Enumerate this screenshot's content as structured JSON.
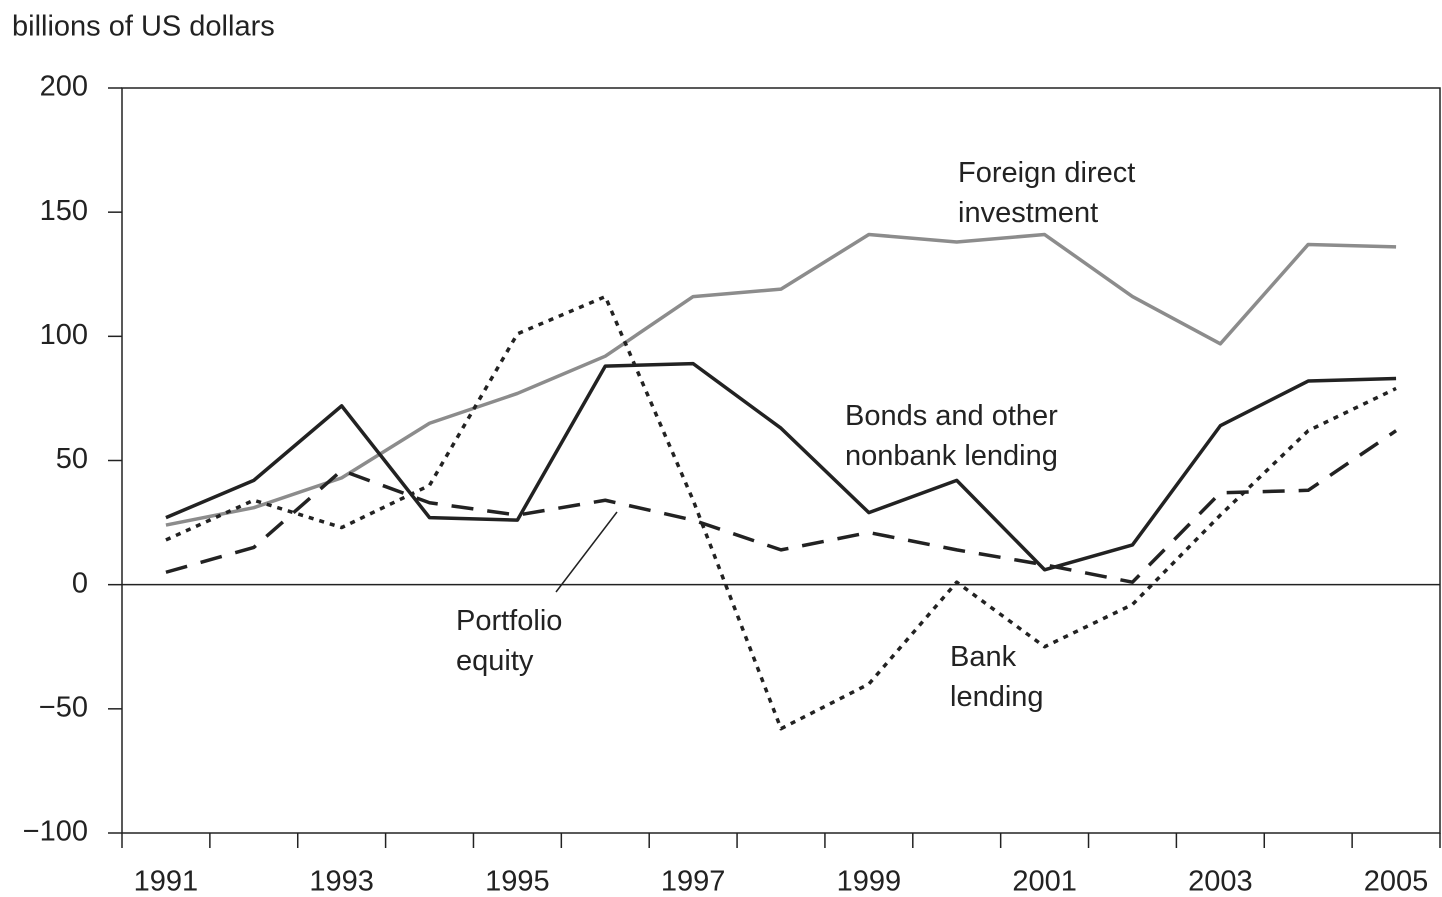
{
  "chart_data": {
    "type": "line",
    "y_label": "billions of US dollars",
    "categories": [
      "1991",
      null,
      "1993",
      null,
      "1995",
      null,
      "1997",
      null,
      "1999",
      null,
      "2001",
      null,
      "2003",
      null,
      "2005"
    ],
    "ylim": [
      -100,
      200
    ],
    "yticks": [
      -100,
      -50,
      0,
      50,
      100,
      150,
      200
    ],
    "yticklabels": [
      "−100",
      "−50",
      "0",
      "50",
      "100",
      "150",
      "200"
    ],
    "series": [
      {
        "name": "Foreign direct investment",
        "color": "#8c8c8c",
        "dash": "solid",
        "values": [
          24,
          31,
          43,
          65,
          77,
          92,
          116,
          119,
          141,
          138,
          141,
          116,
          97,
          137,
          136
        ]
      },
      {
        "name": "Bonds and other nonbank lending",
        "color": "#222222",
        "dash": "solid",
        "values": [
          27,
          42,
          72,
          27,
          26,
          88,
          89,
          63,
          29,
          42,
          6,
          16,
          64,
          82,
          83
        ]
      },
      {
        "name": "Bank lending",
        "color": "#222222",
        "dash": "dotted",
        "values": [
          18,
          34,
          23,
          40,
          101,
          116,
          34,
          -58,
          -40,
          1,
          -25,
          -8,
          28,
          62,
          79
        ]
      },
      {
        "name": "Portfolio equity",
        "color": "#222222",
        "dash": "dashed",
        "values": [
          5,
          15,
          46,
          33,
          28,
          34,
          26,
          14,
          21,
          14,
          8,
          1,
          37,
          38,
          62
        ]
      }
    ]
  }
}
